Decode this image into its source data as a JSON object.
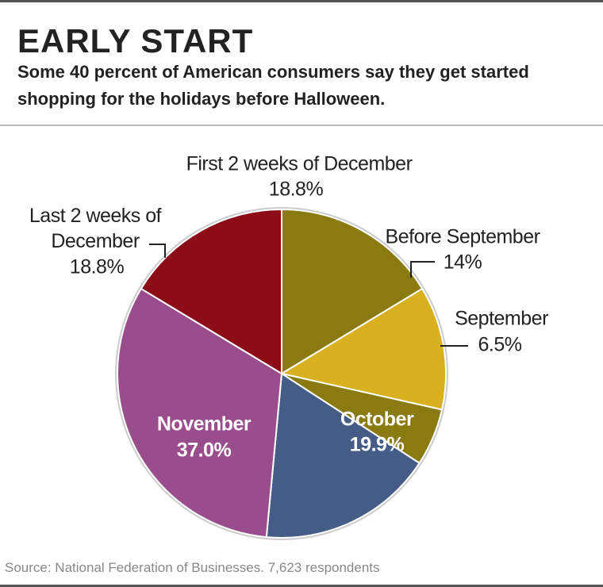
{
  "chart_data": {
    "type": "pie",
    "title": "EARLY START",
    "subtitle": "Some 40 percent of American consumers say they get started shopping for the holidays before Halloween.",
    "categories": [
      "First 2 weeks of December",
      "Before September",
      "September",
      "October",
      "November",
      "Last 2 weeks of December"
    ],
    "values": [
      18.8,
      14,
      6.5,
      19.9,
      37.0,
      18.8
    ],
    "value_labels": [
      "18.8%",
      "14%",
      "6.5%",
      "19.9%",
      "37.0%",
      "18.8%"
    ],
    "colors": [
      "#8a7a12",
      "#d9b020",
      "#8a7a12",
      "#445c86",
      "#9a4d8c",
      "#8c0d18"
    ],
    "source": "Source: National Federation of Businesses. 7,623 respondents"
  }
}
